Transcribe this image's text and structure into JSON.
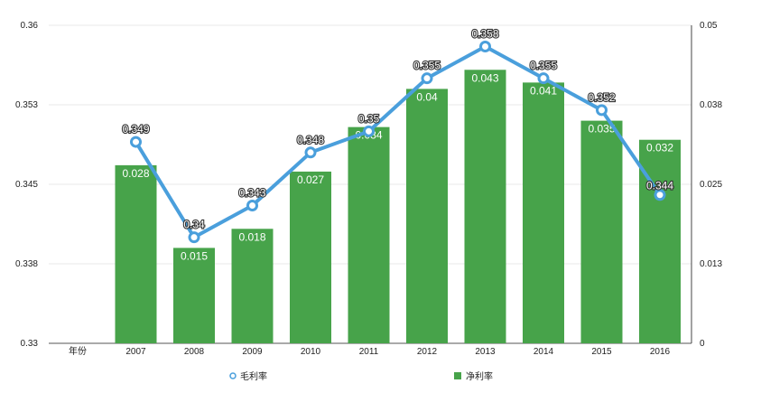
{
  "chart_data": {
    "type": "bar",
    "x_title": "年份",
    "categories": [
      "2007",
      "2008",
      "2009",
      "2010",
      "2011",
      "2012",
      "2013",
      "2014",
      "2015",
      "2016"
    ],
    "series": [
      {
        "name": "净利率",
        "type": "bar",
        "axis": "right",
        "color": "#47a34a",
        "values": [
          0.028,
          0.015,
          0.018,
          0.027,
          0.034,
          0.04,
          0.043,
          0.041,
          0.035,
          0.032
        ],
        "labels": [
          "0.028",
          "0.015",
          "0.018",
          "0.027",
          "0.034",
          "0.04",
          "0.043",
          "0.041",
          "0.035",
          "0.032"
        ]
      },
      {
        "name": "毛利率",
        "type": "line",
        "axis": "left",
        "color": "#4a9fdc",
        "values": [
          0.349,
          0.34,
          0.343,
          0.348,
          0.35,
          0.355,
          0.358,
          0.355,
          0.352,
          0.344
        ],
        "labels": [
          "0.349",
          "0.34",
          "0.343",
          "0.348",
          "0.35",
          "0.355",
          "0.358",
          "0.355",
          "0.352",
          "0.344"
        ]
      }
    ],
    "y_left": {
      "min": 0.33,
      "max": 0.36,
      "ticks": [
        "0.33",
        "0.338",
        "0.345",
        "0.353",
        "0.36"
      ]
    },
    "y_right": {
      "min": 0,
      "max": 0.05,
      "ticks": [
        "0",
        "0.013",
        "0.025",
        "0.038",
        "0.05"
      ]
    },
    "grid": true,
    "legend_position": "bottom"
  }
}
